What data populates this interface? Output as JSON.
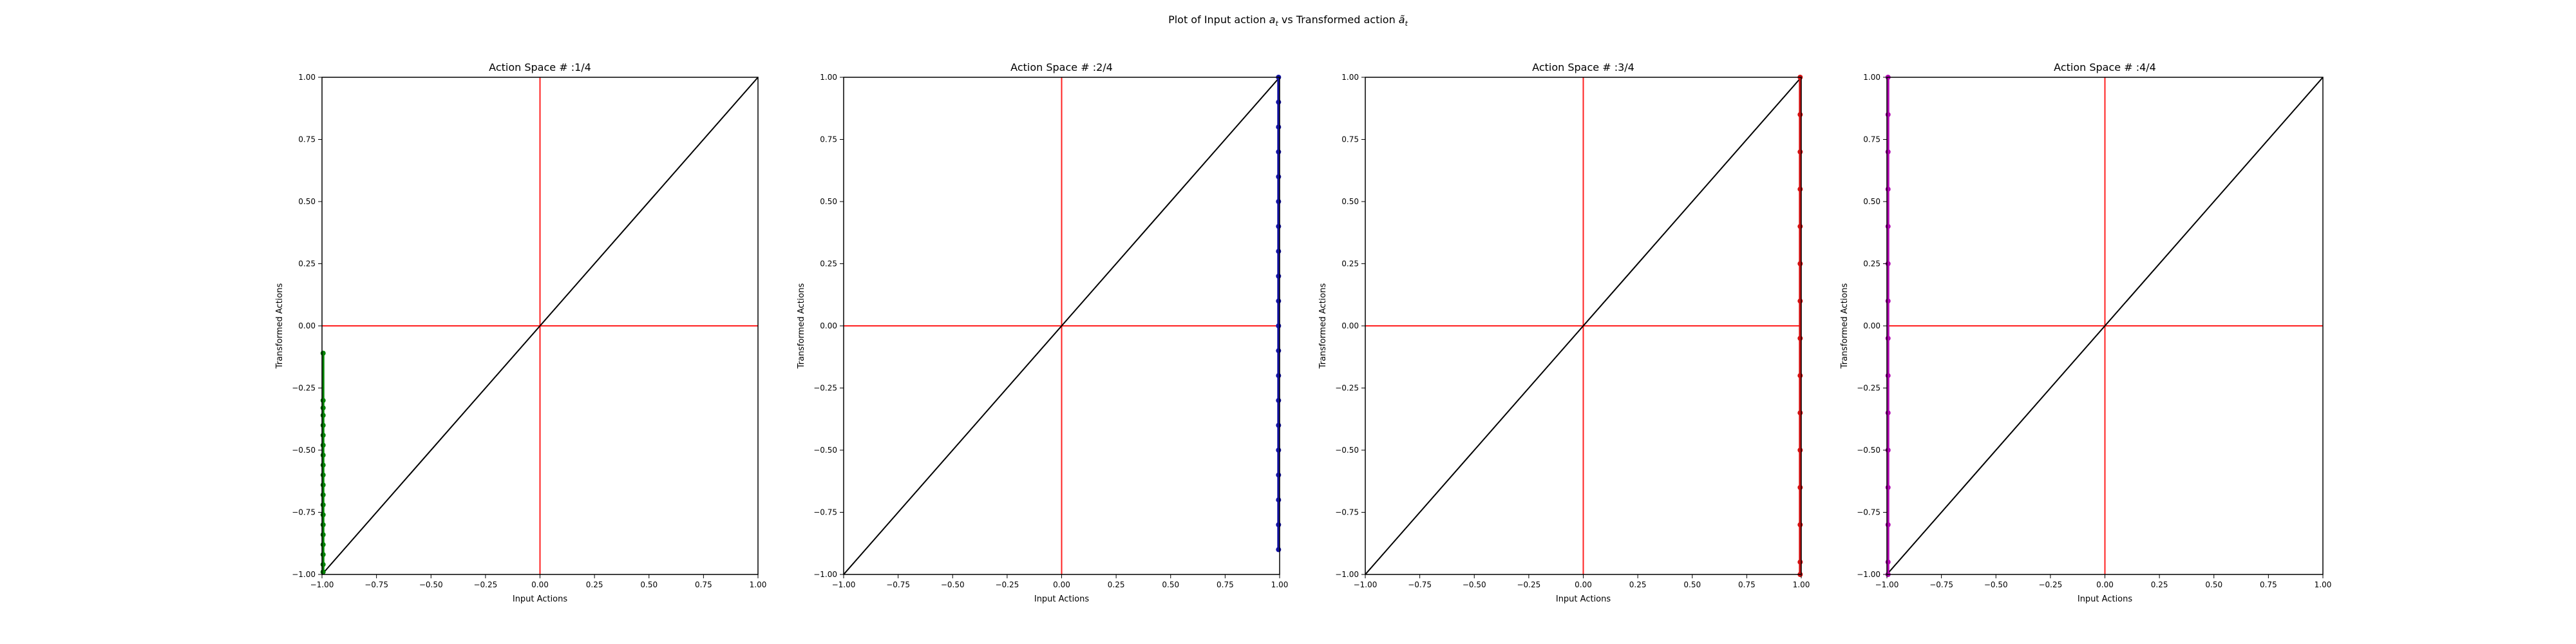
{
  "figure": {
    "title_prefix": "Plot of Input action ",
    "title_var1_base": "a",
    "title_var1_sub": "t",
    "title_middle": " vs Transformed action ",
    "title_var2_base": "ã",
    "title_var2_sub": "t"
  },
  "chart_data": [
    {
      "type": "scatter",
      "title": "Action Space # :1/4",
      "xlabel": "Input Actions",
      "ylabel": "Transformed Actions",
      "xlim": [
        -1.0,
        1.0
      ],
      "ylim": [
        -1.0,
        1.0
      ],
      "xticks": [
        "−1.00",
        "−0.75",
        "−0.50",
        "−0.25",
        "0.00",
        "0.25",
        "0.50",
        "0.75",
        "1.00"
      ],
      "yticks": [
        "−1.00",
        "−0.75",
        "−0.50",
        "−0.25",
        "0.00",
        "0.25",
        "0.50",
        "0.75",
        "1.00"
      ],
      "grid": false,
      "reference_lines": {
        "diagonal_color": "#000000",
        "axes_cross_color": "#ff2020"
      },
      "series": [
        {
          "color": "#008000",
          "points": [
            [
              -0.995,
              -0.11
            ],
            [
              -0.995,
              -0.3
            ],
            [
              -0.995,
              -0.33
            ],
            [
              -0.995,
              -0.36
            ],
            [
              -0.995,
              -0.4
            ],
            [
              -0.995,
              -0.44
            ],
            [
              -0.995,
              -0.48
            ],
            [
              -0.995,
              -0.52
            ],
            [
              -0.995,
              -0.56
            ],
            [
              -0.995,
              -0.6
            ],
            [
              -0.995,
              -0.64
            ],
            [
              -0.995,
              -0.68
            ],
            [
              -0.995,
              -0.72
            ],
            [
              -0.995,
              -0.76
            ],
            [
              -0.995,
              -0.8
            ],
            [
              -0.995,
              -0.84
            ],
            [
              -0.995,
              -0.88
            ],
            [
              -0.995,
              -0.92
            ],
            [
              -0.995,
              -0.96
            ],
            [
              -0.995,
              -0.99
            ]
          ]
        }
      ]
    },
    {
      "type": "scatter",
      "title": "Action Space # :2/4",
      "xlabel": "Input Actions",
      "ylabel": "Transformed Actions",
      "xlim": [
        -1.0,
        1.0
      ],
      "ylim": [
        -1.0,
        1.0
      ],
      "xticks": [
        "−1.00",
        "−0.75",
        "−0.50",
        "−0.25",
        "0.00",
        "0.25",
        "0.50",
        "0.75",
        "1.00"
      ],
      "yticks": [
        "−1.00",
        "−0.75",
        "−0.50",
        "−0.25",
        "0.00",
        "0.25",
        "0.50",
        "0.75",
        "1.00"
      ],
      "grid": false,
      "reference_lines": {
        "diagonal_color": "#000000",
        "axes_cross_color": "#ff2020"
      },
      "series": [
        {
          "color": "#1010a0",
          "points": [
            [
              0.995,
              1.0
            ],
            [
              0.995,
              0.9
            ],
            [
              0.995,
              0.8
            ],
            [
              0.995,
              0.7
            ],
            [
              0.995,
              0.6
            ],
            [
              0.995,
              0.5
            ],
            [
              0.995,
              0.4
            ],
            [
              0.995,
              0.3
            ],
            [
              0.995,
              0.2
            ],
            [
              0.995,
              0.1
            ],
            [
              0.995,
              0.0
            ],
            [
              0.995,
              -0.1
            ],
            [
              0.995,
              -0.2
            ],
            [
              0.995,
              -0.3
            ],
            [
              0.995,
              -0.4
            ],
            [
              0.995,
              -0.5
            ],
            [
              0.995,
              -0.6
            ],
            [
              0.995,
              -0.7
            ],
            [
              0.995,
              -0.8
            ],
            [
              0.995,
              -0.9
            ]
          ]
        }
      ]
    },
    {
      "type": "scatter",
      "title": "Action Space # :3/4",
      "xlabel": "Input Actions",
      "ylabel": "Transformed Actions",
      "xlim": [
        -1.0,
        1.0
      ],
      "ylim": [
        -1.0,
        1.0
      ],
      "xticks": [
        "−1.00",
        "−0.75",
        "−0.50",
        "−0.25",
        "0.00",
        "0.25",
        "0.50",
        "0.75",
        "1.00"
      ],
      "yticks": [
        "−1.00",
        "−0.75",
        "−0.50",
        "−0.25",
        "0.00",
        "0.25",
        "0.50",
        "0.75",
        "1.00"
      ],
      "grid": false,
      "reference_lines": {
        "diagonal_color": "#000000",
        "axes_cross_color": "#ff2020"
      },
      "series": [
        {
          "color": "#d01010",
          "points": [
            [
              0.995,
              1.0
            ],
            [
              0.995,
              0.85
            ],
            [
              0.995,
              0.7
            ],
            [
              0.995,
              0.55
            ],
            [
              0.995,
              0.4
            ],
            [
              0.995,
              0.25
            ],
            [
              0.995,
              0.1
            ],
            [
              0.995,
              -0.05
            ],
            [
              0.995,
              -0.2
            ],
            [
              0.995,
              -0.35
            ],
            [
              0.995,
              -0.5
            ],
            [
              0.995,
              -0.65
            ],
            [
              0.995,
              -0.8
            ],
            [
              0.995,
              -0.95
            ],
            [
              0.995,
              -1.0
            ]
          ]
        }
      ]
    },
    {
      "type": "scatter",
      "title": "Action Space # :4/4",
      "xlabel": "Input Actions",
      "ylabel": "Transformed Actions",
      "xlim": [
        -1.0,
        1.0
      ],
      "ylim": [
        -1.0,
        1.0
      ],
      "xticks": [
        "−1.00",
        "−0.75",
        "−0.50",
        "−0.25",
        "0.00",
        "0.25",
        "0.50",
        "0.75",
        "1.00"
      ],
      "yticks": [
        "−1.00",
        "−0.75",
        "−0.50",
        "−0.25",
        "0.00",
        "0.25",
        "0.50",
        "0.75",
        "1.00"
      ],
      "grid": false,
      "reference_lines": {
        "diagonal_color": "#000000",
        "axes_cross_color": "#ff2020"
      },
      "series": [
        {
          "color": "#b000b0",
          "points": [
            [
              -0.995,
              1.0
            ],
            [
              -0.995,
              0.85
            ],
            [
              -0.995,
              0.7
            ],
            [
              -0.995,
              0.55
            ],
            [
              -0.995,
              0.4
            ],
            [
              -0.995,
              0.25
            ],
            [
              -0.995,
              0.1
            ],
            [
              -0.995,
              -0.05
            ],
            [
              -0.995,
              -0.2
            ],
            [
              -0.995,
              -0.35
            ],
            [
              -0.995,
              -0.5
            ],
            [
              -0.995,
              -0.65
            ],
            [
              -0.995,
              -0.8
            ],
            [
              -0.995,
              -0.95
            ],
            [
              -0.995,
              -1.0
            ]
          ]
        }
      ]
    }
  ]
}
